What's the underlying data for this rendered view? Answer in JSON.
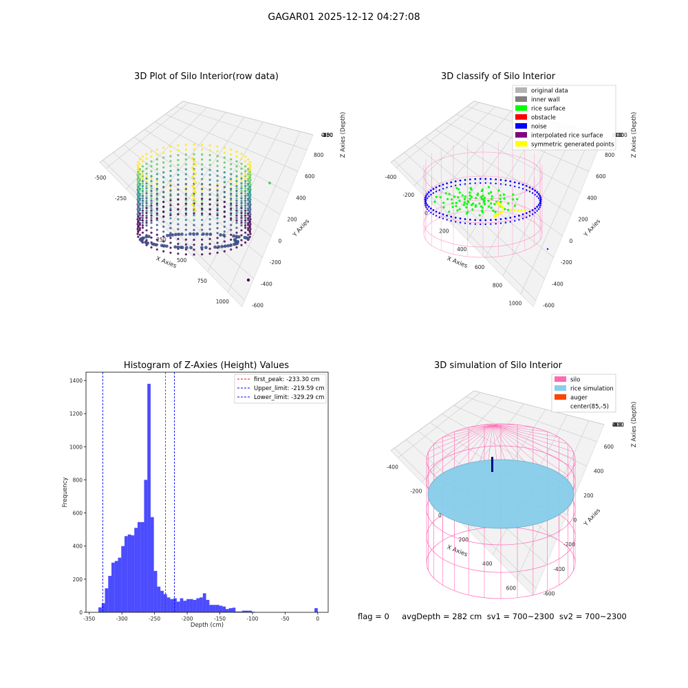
{
  "figure": {
    "suptitle": "GAGAR01 2025-12-12 04:27:08"
  },
  "panels": {
    "raw": {
      "title": "3D Plot of Silo Interior(row data)",
      "xlabel": "X Axies",
      "ylabel": "Y Axies",
      "zlabel": "Z Axies (Depth)",
      "xticks": [
        "-500",
        "-250",
        "0",
        "250",
        "500",
        "750",
        "1000"
      ],
      "yticks": [
        "-600",
        "-400",
        "-200",
        "0",
        "200",
        "400",
        "600",
        "800"
      ],
      "zticks": [
        "0",
        "-50",
        "-100",
        "-150",
        "-200",
        "-250",
        "-300",
        "-350",
        "-400"
      ],
      "colormap": "viridis"
    },
    "classify": {
      "title": "3D classify of Silo Interior",
      "xlabel": "X Axies",
      "ylabel": "Y Axies",
      "zlabel": "Z Axies (Depth)",
      "xticks": [
        "-400",
        "-200",
        "0",
        "200",
        "400",
        "600",
        "800",
        "1000"
      ],
      "yticks": [
        "-600",
        "-400",
        "-200",
        "0",
        "200",
        "400",
        "600",
        "800"
      ],
      "zticks": [
        "400",
        "200",
        "0",
        "-200",
        "-400",
        "-600",
        "-800",
        "-1000"
      ],
      "legend": [
        {
          "label": "original data",
          "color": "#b4b4b4"
        },
        {
          "label": "inner wall",
          "color": "#808080"
        },
        {
          "label": "rice surface",
          "color": "#00ff00"
        },
        {
          "label": "obstacle",
          "color": "#ff0000"
        },
        {
          "label": "noise",
          "color": "#0000ff"
        },
        {
          "label": "interpolated rice surface",
          "color": "#800080"
        },
        {
          "label": "symmetric generated points",
          "color": "#ffff00"
        }
      ]
    },
    "simulation": {
      "title": "3D simulation of Silo Interior",
      "xlabel": "X Axies",
      "ylabel": "Y Axies",
      "zlabel": "Z Axies (Depth)",
      "xticks": [
        "-400",
        "-200",
        "0",
        "200",
        "400",
        "600"
      ],
      "yticks": [
        "-600",
        "-400",
        "-200",
        "0",
        "200",
        "400",
        "600"
      ],
      "zticks": [
        "400",
        "200",
        "0",
        "-200",
        "-400",
        "-600",
        "-800"
      ],
      "legend": [
        {
          "label": "silo",
          "color": "#ff69b4"
        },
        {
          "label": "rice simulation",
          "color": "#87ceeb"
        },
        {
          "label": "auger",
          "color": "#ff4500"
        },
        {
          "label": "center(85,-5)",
          "color": "#ffffff"
        }
      ]
    }
  },
  "chart_data": {
    "type": "bar",
    "title": "Histogram of Z-Axies (Height) Values",
    "xlabel": "Depth (cm)",
    "ylabel": "Frequency",
    "xlim": [
      -350,
      0
    ],
    "ylim": [
      0,
      1400
    ],
    "xticks": [
      -350,
      -300,
      -250,
      -200,
      -150,
      -100,
      -50,
      0
    ],
    "yticks": [
      0,
      200,
      400,
      600,
      800,
      1000,
      1200,
      1400
    ],
    "bar_color": "#0000ff",
    "bins": [
      {
        "x0": -336,
        "x1": -331,
        "count": 30
      },
      {
        "x0": -331,
        "x1": -326,
        "count": 55
      },
      {
        "x0": -326,
        "x1": -321,
        "count": 145
      },
      {
        "x0": -321,
        "x1": -316,
        "count": 220
      },
      {
        "x0": -316,
        "x1": -311,
        "count": 300
      },
      {
        "x0": -311,
        "x1": -306,
        "count": 310
      },
      {
        "x0": -306,
        "x1": -301,
        "count": 330
      },
      {
        "x0": -301,
        "x1": -296,
        "count": 400
      },
      {
        "x0": -296,
        "x1": -291,
        "count": 460
      },
      {
        "x0": -291,
        "x1": -286,
        "count": 470
      },
      {
        "x0": -286,
        "x1": -281,
        "count": 465
      },
      {
        "x0": -281,
        "x1": -276,
        "count": 510
      },
      {
        "x0": -276,
        "x1": -271,
        "count": 545
      },
      {
        "x0": -271,
        "x1": -266,
        "count": 545
      },
      {
        "x0": -266,
        "x1": -261,
        "count": 800
      },
      {
        "x0": -261,
        "x1": -256,
        "count": 1380
      },
      {
        "x0": -256,
        "x1": -251,
        "count": 575
      },
      {
        "x0": -251,
        "x1": -246,
        "count": 250
      },
      {
        "x0": -246,
        "x1": -241,
        "count": 155
      },
      {
        "x0": -241,
        "x1": -236,
        "count": 130
      },
      {
        "x0": -236,
        "x1": -231,
        "count": 110
      },
      {
        "x0": -231,
        "x1": -226,
        "count": 90
      },
      {
        "x0": -226,
        "x1": -221,
        "count": 80
      },
      {
        "x0": -221,
        "x1": -216,
        "count": 85
      },
      {
        "x0": -216,
        "x1": -211,
        "count": 65
      },
      {
        "x0": -211,
        "x1": -206,
        "count": 85
      },
      {
        "x0": -206,
        "x1": -201,
        "count": 70
      },
      {
        "x0": -201,
        "x1": -196,
        "count": 80
      },
      {
        "x0": -196,
        "x1": -191,
        "count": 80
      },
      {
        "x0": -191,
        "x1": -186,
        "count": 75
      },
      {
        "x0": -186,
        "x1": -181,
        "count": 85
      },
      {
        "x0": -181,
        "x1": -176,
        "count": 90
      },
      {
        "x0": -176,
        "x1": -171,
        "count": 115
      },
      {
        "x0": -171,
        "x1": -166,
        "count": 75
      },
      {
        "x0": -166,
        "x1": -161,
        "count": 45
      },
      {
        "x0": -161,
        "x1": -156,
        "count": 45
      },
      {
        "x0": -156,
        "x1": -151,
        "count": 45
      },
      {
        "x0": -151,
        "x1": -146,
        "count": 40
      },
      {
        "x0": -146,
        "x1": -141,
        "count": 35
      },
      {
        "x0": -141,
        "x1": -136,
        "count": 20
      },
      {
        "x0": -136,
        "x1": -131,
        "count": 25
      },
      {
        "x0": -131,
        "x1": -126,
        "count": 28
      },
      {
        "x0": -126,
        "x1": -121,
        "count": 5
      },
      {
        "x0": -121,
        "x1": -116,
        "count": 5
      },
      {
        "x0": -116,
        "x1": -111,
        "count": 10
      },
      {
        "x0": -111,
        "x1": -106,
        "count": 10
      },
      {
        "x0": -106,
        "x1": -101,
        "count": 10
      },
      {
        "x0": -101,
        "x1": -96,
        "count": 3
      },
      {
        "x0": -5,
        "x1": 0,
        "count": 25
      }
    ],
    "vlines": [
      {
        "label": "first_peak: -233.30 cm",
        "x": -233.3,
        "color": "#ff0000"
      },
      {
        "label": "Upper_limit: -219.59 cm",
        "x": -219.59,
        "color": "#0000ff"
      },
      {
        "label": "Lower_limit: -329.29 cm",
        "x": -329.29,
        "color": "#0000ff"
      }
    ]
  },
  "status": {
    "text": "flag = 0     avgDepth = 282 cm  sv1 = 700~2300  sv2 = 700~2300"
  }
}
